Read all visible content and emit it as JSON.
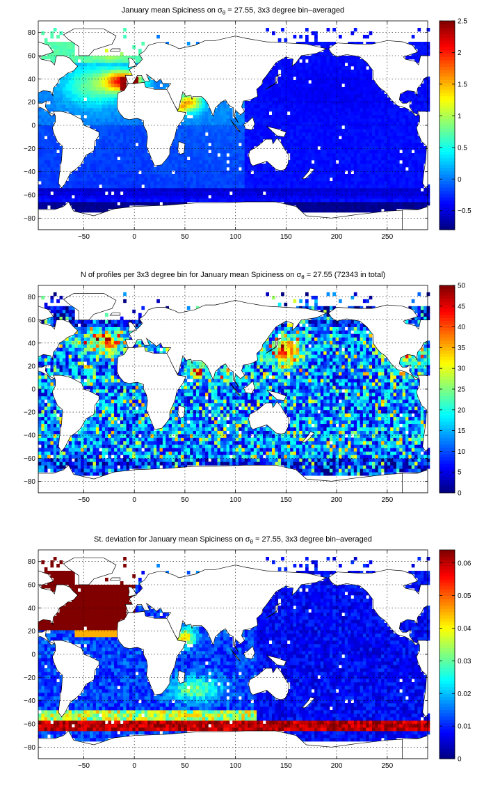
{
  "chart_data": [
    {
      "type": "heatmap",
      "title_prefix": "January mean Spiciness on ",
      "title_sigma": "σ",
      "title_sub": "θ",
      "title_suffix": " = 27.55, 3x3 degree bin–averaged",
      "xlim": [
        -95,
        290
      ],
      "ylim": [
        -90,
        90
      ],
      "x_ticks": [
        -50,
        0,
        50,
        100,
        150,
        200,
        250
      ],
      "y_ticks": [
        80,
        60,
        40,
        20,
        0,
        -20,
        -40,
        -60,
        -80
      ],
      "grid": true,
      "colormap": "jet",
      "colorbar": {
        "placement": "right",
        "min": -0.8,
        "max": 2.5,
        "ticks": [
          2.5,
          2,
          1.5,
          1,
          0.5,
          0,
          -0.5
        ]
      },
      "field": "spiciness"
    },
    {
      "type": "heatmap",
      "title_prefix": "N of profiles per 3x3 degree bin for January mean Spiciness on ",
      "title_sigma": "σ",
      "title_sub": "θ",
      "title_suffix": " = 27.55 (72343 in total)",
      "xlim": [
        -95,
        290
      ],
      "ylim": [
        -90,
        90
      ],
      "x_ticks": [
        -50,
        0,
        50,
        100,
        150,
        200,
        250
      ],
      "y_ticks": [
        80,
        60,
        40,
        20,
        0,
        -20,
        -40,
        -60,
        -80
      ],
      "grid": true,
      "colormap": "jet",
      "colorbar": {
        "placement": "right",
        "min": 0,
        "max": 50,
        "ticks": [
          50,
          45,
          40,
          35,
          30,
          25,
          20,
          15,
          10,
          5,
          0
        ]
      },
      "field": "count"
    },
    {
      "type": "heatmap",
      "title_prefix": "St. deviation for January mean Spiciness on ",
      "title_sigma": "σ",
      "title_sub": "θ",
      "title_suffix": " = 27.55, 3x3 degree bin–averaged",
      "xlim": [
        -95,
        290
      ],
      "ylim": [
        -90,
        90
      ],
      "x_ticks": [
        -50,
        0,
        50,
        100,
        150,
        200,
        250
      ],
      "y_ticks": [
        80,
        60,
        40,
        20,
        0,
        -20,
        -40,
        -60,
        -80
      ],
      "grid": true,
      "colormap": "jet",
      "colorbar": {
        "placement": "right",
        "min": 0,
        "max": 0.064,
        "ticks": [
          0.06,
          0.05,
          0.04,
          0.03,
          0.02,
          0.01,
          0
        ]
      },
      "field": "stdev"
    }
  ]
}
